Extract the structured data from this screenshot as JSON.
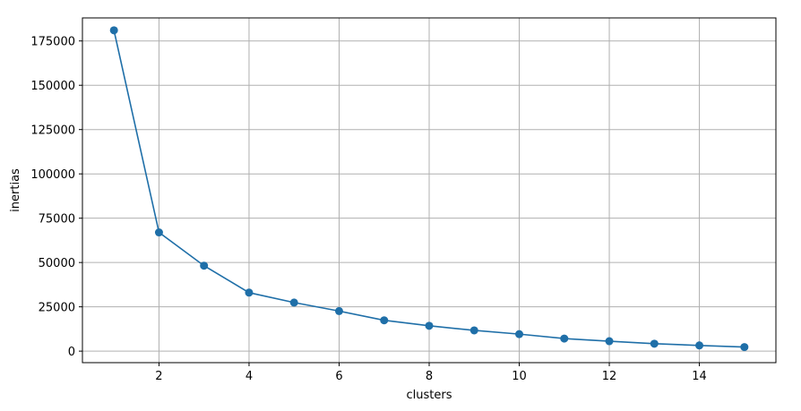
{
  "chart_data": {
    "type": "line",
    "xlabel": "clusters",
    "ylabel": "inertias",
    "xlim": [
      0.3,
      15.7
    ],
    "ylim": [
      -6500,
      188000
    ],
    "x_ticks": [
      2,
      4,
      6,
      8,
      10,
      12,
      14
    ],
    "y_ticks": [
      0,
      25000,
      50000,
      75000,
      100000,
      125000,
      150000,
      175000
    ],
    "grid": true,
    "series": [
      {
        "color": "#1f6fa8",
        "marker": "circle",
        "x": [
          1,
          2,
          3,
          4,
          5,
          6,
          7,
          8,
          9,
          10,
          11,
          12,
          13,
          14,
          15
        ],
        "y": [
          181000,
          67000,
          48200,
          33000,
          27400,
          22600,
          17400,
          14300,
          11700,
          9600,
          7100,
          5600,
          4200,
          3200,
          2300
        ]
      }
    ]
  }
}
